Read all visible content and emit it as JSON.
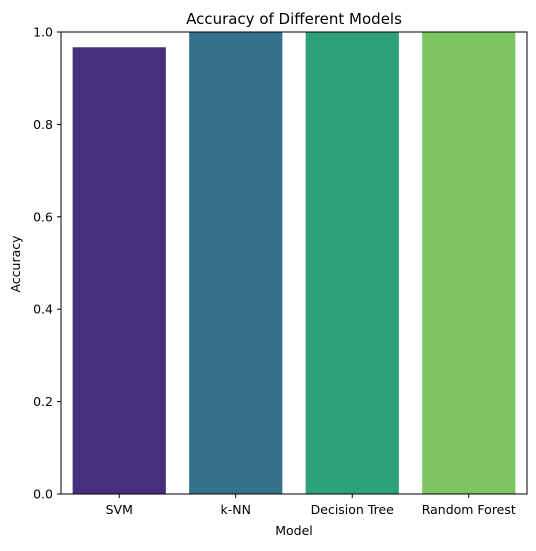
{
  "chart_data": {
    "type": "bar",
    "title": "Accuracy of Different Models",
    "xlabel": "Model",
    "ylabel": "Accuracy",
    "categories": [
      "SVM",
      "k-NN",
      "Decision Tree",
      "Random Forest"
    ],
    "values": [
      0.967,
      1.0,
      1.0,
      1.0
    ],
    "ylim": [
      0,
      1.0
    ],
    "yticks": [
      0.0,
      0.2,
      0.4,
      0.6,
      0.8,
      1.0
    ],
    "ytick_labels": [
      "0.0",
      "0.2",
      "0.4",
      "0.6",
      "0.8",
      "1.0"
    ],
    "colors": [
      "#472F7D",
      "#33728A",
      "#2EA07A",
      "#7DC562"
    ],
    "grid": false,
    "legend": null
  }
}
